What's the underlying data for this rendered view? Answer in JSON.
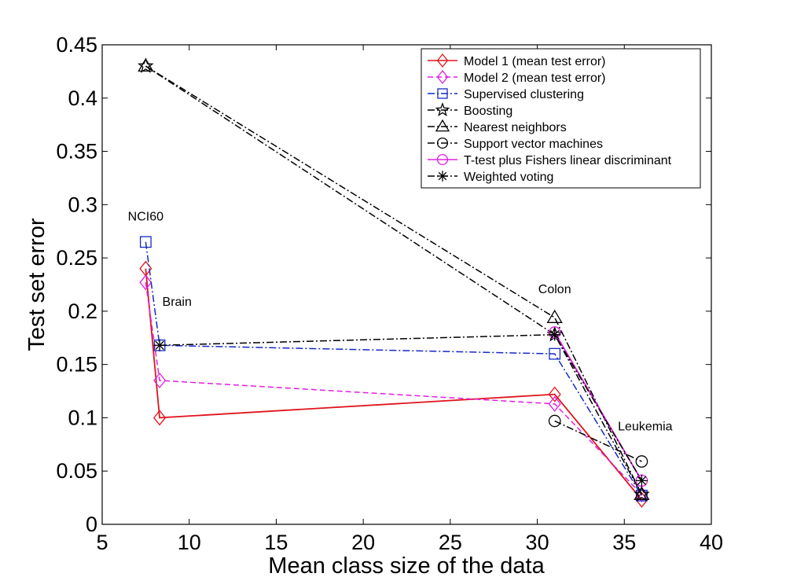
{
  "chart_data": {
    "type": "line",
    "xlabel": "Mean class size of the data",
    "ylabel": "Test set error",
    "xlim": [
      5,
      40
    ],
    "ylim": [
      0,
      0.45
    ],
    "xticks": [
      5,
      10,
      15,
      20,
      25,
      30,
      35,
      40
    ],
    "yticks": [
      0,
      0.05,
      0.1,
      0.15,
      0.2,
      0.25,
      0.3,
      0.35,
      0.4,
      0.45
    ],
    "xtick_labels": [
      "5",
      "10",
      "15",
      "20",
      "25",
      "30",
      "35",
      "40"
    ],
    "ytick_labels": [
      "0",
      "0.05",
      "0.1",
      "0.15",
      "0.2",
      "0.25",
      "0.3",
      "0.35",
      "0.4",
      "0.45"
    ],
    "grid": false,
    "legend_position": "top-right",
    "annotations": [
      {
        "text": "NCI60",
        "x": 7.5,
        "y": 0.285
      },
      {
        "text": "Brain",
        "x": 9.3,
        "y": 0.205
      },
      {
        "text": "Colon",
        "x": 31.0,
        "y": 0.217
      },
      {
        "text": "Leukemia",
        "x": 36.2,
        "y": 0.088
      }
    ],
    "series": [
      {
        "name": "Model 1 (mean test error)",
        "color": "#e0141e",
        "dash": "solid",
        "marker": "diamond",
        "points": [
          [
            7.5,
            0.24
          ],
          [
            8.3,
            0.1
          ],
          [
            31.0,
            0.122
          ],
          [
            36.0,
            0.023
          ]
        ]
      },
      {
        "name": "Model 2 (mean test error)",
        "color": "#e020e0",
        "dash": "dashed",
        "marker": "diamond",
        "points": [
          [
            7.5,
            0.227
          ],
          [
            8.3,
            0.135
          ],
          [
            31.0,
            0.113
          ],
          [
            36.0,
            0.028
          ]
        ]
      },
      {
        "name": "Supervised clustering",
        "color": "#1428c8",
        "dash": "dashdot",
        "marker": "square",
        "points": [
          [
            7.5,
            0.265
          ],
          [
            8.3,
            0.168
          ],
          [
            31.0,
            0.16
          ],
          [
            36.0,
            0.027
          ]
        ]
      },
      {
        "name": "Boosting",
        "color": "#000000",
        "dash": "dashdot",
        "marker": "star",
        "points": [
          [
            7.5,
            0.43
          ],
          [
            31.0,
            0.178
          ],
          [
            36.0,
            0.028
          ]
        ]
      },
      {
        "name": "Nearest neighbors",
        "color": "#000000",
        "dash": "dashdot",
        "marker": "triangle",
        "points": [
          [
            7.5,
            0.43
          ],
          [
            31.0,
            0.194
          ],
          [
            36.0,
            0.028
          ]
        ]
      },
      {
        "name": "Support vector machines",
        "color": "#000000",
        "dash": "dashdot",
        "marker": "circle",
        "points": [
          [
            31.0,
            0.097
          ],
          [
            36.0,
            0.059
          ]
        ]
      },
      {
        "name": "T-test plus Fishers linear discriminant",
        "color": "#e020e0",
        "dash": "solid",
        "marker": "circle",
        "points": [
          [
            31.0,
            0.18
          ],
          [
            36.0,
            0.041
          ]
        ]
      },
      {
        "name": "Weighted voting",
        "color": "#000000",
        "dash": "dashdot",
        "marker": "asterisk",
        "points": [
          [
            8.3,
            0.168
          ],
          [
            31.0,
            0.178
          ],
          [
            36.0,
            0.041
          ]
        ]
      }
    ]
  }
}
